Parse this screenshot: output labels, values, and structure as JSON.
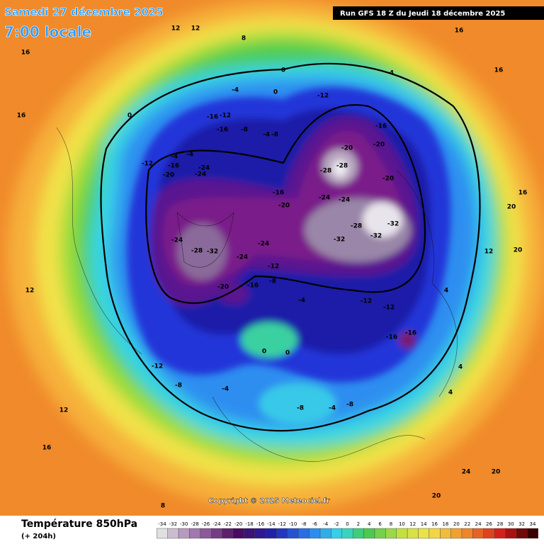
{
  "header": {
    "date": "Samedi 27 décembre 2025",
    "time": "7:00 locale",
    "run": "Run GFS 18 Z du Jeudi 18 décembre 2025"
  },
  "copyright": "Copyright © 2025 Meteociel.fr",
  "footer": {
    "title": "Température 850hPa",
    "lead": "(+ 204h)"
  },
  "scale": [
    -34,
    -32,
    -30,
    -28,
    -26,
    -24,
    -22,
    -20,
    -18,
    -16,
    -14,
    -12,
    -10,
    -8,
    -6,
    -4,
    -2,
    0,
    2,
    4,
    6,
    8,
    10,
    12,
    14,
    16,
    18,
    20,
    22,
    24,
    26,
    28,
    30,
    32,
    34
  ],
  "map_labels": [
    -16,
    -12,
    -16,
    -8,
    -4,
    -8,
    -20,
    -24,
    -24,
    -16,
    -4,
    -4,
    -12,
    -16,
    -20,
    -24,
    -24,
    -20,
    -28,
    -28,
    -16,
    -20,
    -20,
    -32,
    -32,
    -28,
    -32,
    -24,
    -28,
    -32,
    -24,
    -24,
    -12,
    -8,
    -16,
    -20,
    -12,
    -12,
    -16,
    -16,
    -12,
    -8,
    -4,
    0,
    0,
    -4,
    -8,
    -4,
    -8,
    0,
    0,
    -4,
    0,
    -12,
    -4,
    4,
    4,
    4,
    12,
    16,
    20,
    20,
    12,
    16,
    16,
    16,
    16,
    12,
    16,
    8,
    20,
    20,
    24,
    12,
    12,
    8
  ]
}
